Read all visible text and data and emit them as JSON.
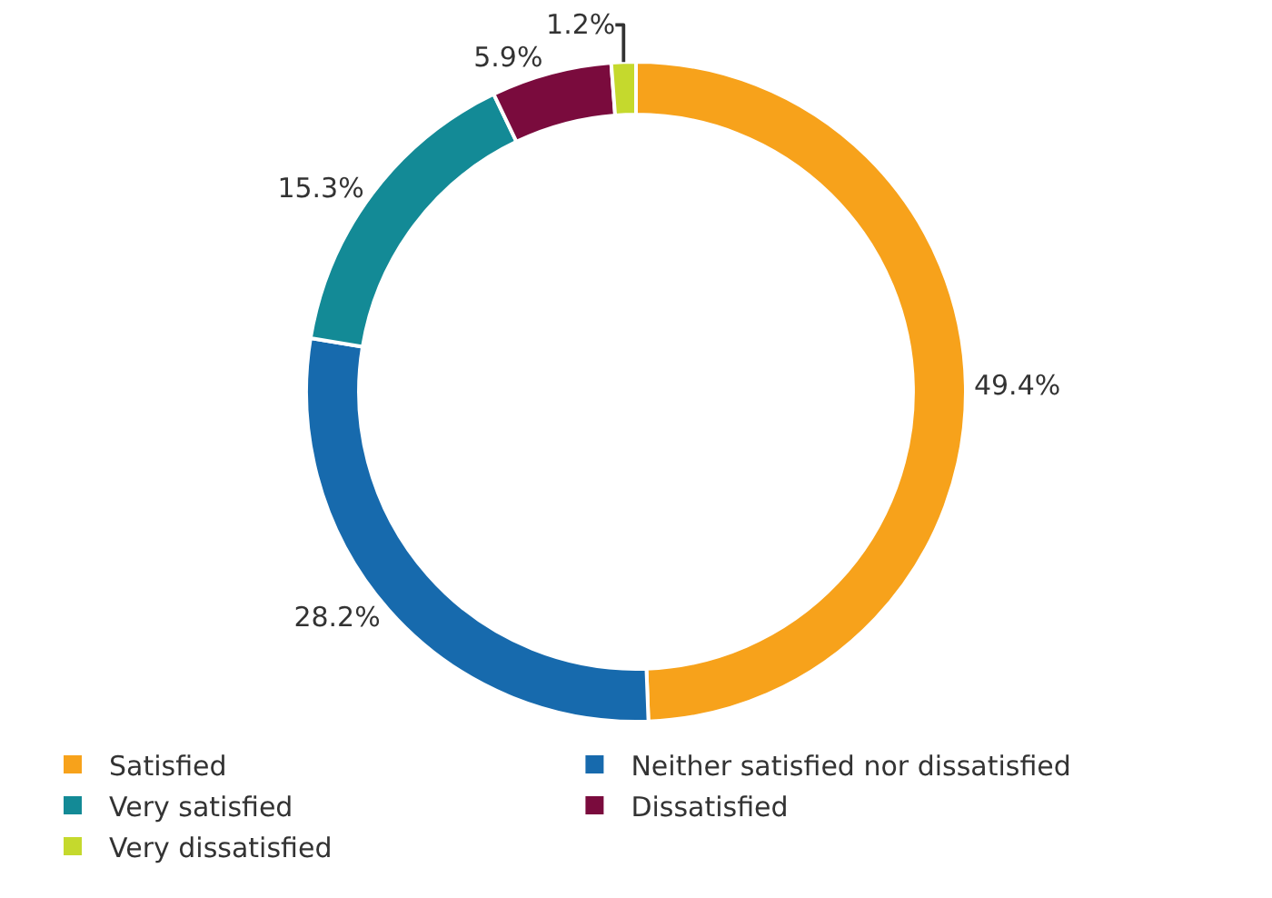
{
  "chart_data": {
    "type": "donut",
    "categories": [
      "Satisfied",
      "Neither satisfied nor dissatisfied",
      "Very satisfied",
      "Dissatisfied",
      "Very dissatisfied"
    ],
    "values": [
      49.4,
      28.2,
      15.3,
      5.9,
      1.2
    ],
    "value_labels": [
      "49.4%",
      "28.2%",
      "15.3%",
      "5.9%",
      "1.2%"
    ],
    "colors": [
      "#f7a21b",
      "#176aad",
      "#138a96",
      "#7a0b3d",
      "#c5d92d"
    ],
    "legend": "bottom left"
  }
}
